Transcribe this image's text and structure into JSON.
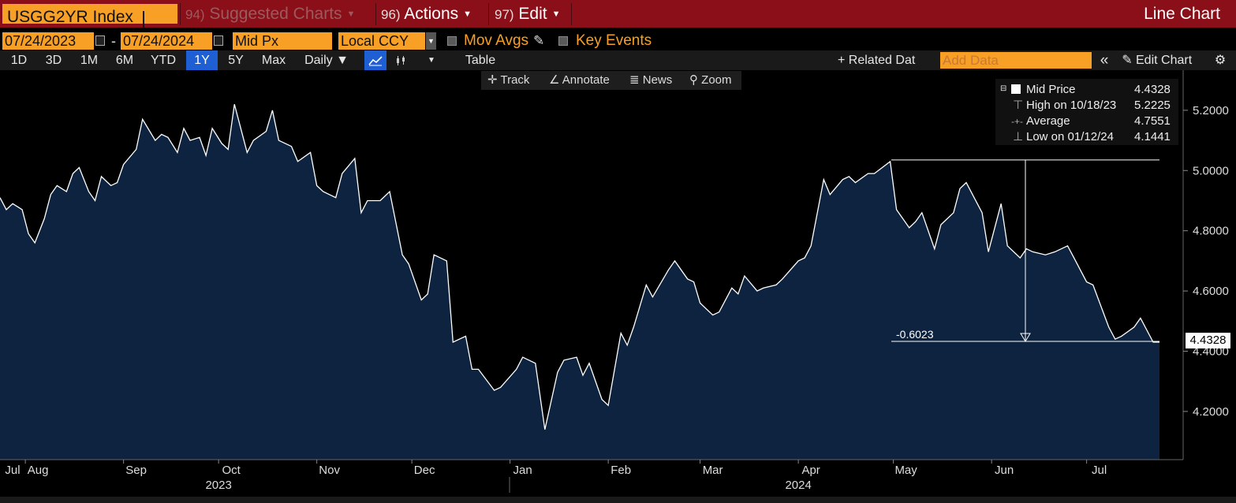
{
  "header": {
    "ticker": "USGG2YR Index",
    "menus": [
      {
        "num": "94)",
        "label": "Suggested Charts",
        "dim": true
      },
      {
        "num": "96)",
        "label": "Actions",
        "dim": false
      },
      {
        "num": "97)",
        "label": "Edit",
        "dim": false
      }
    ],
    "chart_type": "Line Chart"
  },
  "controls": {
    "start_date": "07/24/2023",
    "date_sep": "-",
    "end_date": "07/24/2024",
    "field": "Mid Px",
    "currency": "Local CCY",
    "mov_avgs": "Mov Avgs",
    "key_events": "Key Events",
    "periods": [
      "1D",
      "3D",
      "1M",
      "6M",
      "YTD",
      "1Y",
      "5Y",
      "Max"
    ],
    "active_period": "1Y",
    "frequency": "Daily ▼",
    "table": "Table",
    "related_data": "+ Related Dat",
    "add_data_placeholder": "Add Data",
    "collapse": "«",
    "edit_chart": "Edit Chart",
    "toolbar": [
      "Track",
      "Annotate",
      "News",
      "Zoom"
    ]
  },
  "legend": {
    "rows": [
      {
        "label": "Mid Price",
        "value": "4.4328"
      },
      {
        "label": "High on 10/18/23",
        "value": "5.2225"
      },
      {
        "label": "Average",
        "value": "4.7551"
      },
      {
        "label": "Low on 01/12/24",
        "value": "4.1441"
      }
    ]
  },
  "last_value": "4.4328",
  "annotation": {
    "label": "-0.6023",
    "from": 5.0351,
    "to": 4.4328
  },
  "colors": {
    "fill": "#0d2340",
    "line": "#ffffff",
    "accent": "#f7a025",
    "bar": "#8b0f19"
  },
  "chart_data": {
    "type": "area",
    "ylim": [
      4.04,
      5.28
    ],
    "yticks": [
      "5.2000",
      "5.0000",
      "4.8000",
      "4.6000",
      "4.4000",
      "4.2000"
    ],
    "ytick_values": [
      5.2,
      5.0,
      4.8,
      4.6,
      4.4,
      4.2
    ],
    "xticks": [
      "Jul",
      "Aug",
      "Sep",
      "Oct",
      "Nov",
      "Dec",
      "Jan",
      "Feb",
      "Mar",
      "Apr",
      "May",
      "Jun",
      "Jul"
    ],
    "xtick_dates": [
      "2023-07-01",
      "2023-08-01",
      "2023-09-01",
      "2023-10-01",
      "2023-11-01",
      "2023-12-01",
      "2024-01-01",
      "2024-02-01",
      "2024-03-01",
      "2024-04-01",
      "2024-05-01",
      "2024-06-01",
      "2024-07-01"
    ],
    "years": [
      {
        "label": "2023",
        "date": "2023-10-01"
      },
      {
        "label": "2024",
        "date": "2024-04-01"
      }
    ],
    "x": [
      "2023-07-24",
      "2023-07-26",
      "2023-07-28",
      "2023-07-31",
      "2023-08-02",
      "2023-08-04",
      "2023-08-07",
      "2023-08-09",
      "2023-08-11",
      "2023-08-14",
      "2023-08-16",
      "2023-08-18",
      "2023-08-21",
      "2023-08-23",
      "2023-08-25",
      "2023-08-28",
      "2023-08-30",
      "2023-09-01",
      "2023-09-05",
      "2023-09-07",
      "2023-09-11",
      "2023-09-13",
      "2023-09-15",
      "2023-09-18",
      "2023-09-20",
      "2023-09-22",
      "2023-09-25",
      "2023-09-27",
      "2023-09-29",
      "2023-10-02",
      "2023-10-04",
      "2023-10-06",
      "2023-10-10",
      "2023-10-12",
      "2023-10-16",
      "2023-10-18",
      "2023-10-20",
      "2023-10-24",
      "2023-10-26",
      "2023-10-30",
      "2023-11-01",
      "2023-11-03",
      "2023-11-07",
      "2023-11-09",
      "2023-11-13",
      "2023-11-15",
      "2023-11-17",
      "2023-11-21",
      "2023-11-24",
      "2023-11-28",
      "2023-11-30",
      "2023-12-04",
      "2023-12-06",
      "2023-12-08",
      "2023-12-12",
      "2023-12-14",
      "2023-12-18",
      "2023-12-20",
      "2023-12-22",
      "2023-12-27",
      "2023-12-29",
      "2024-01-03",
      "2024-01-05",
      "2024-01-09",
      "2024-01-12",
      "2024-01-16",
      "2024-01-18",
      "2024-01-22",
      "2024-01-24",
      "2024-01-26",
      "2024-01-30",
      "2024-02-01",
      "2024-02-05",
      "2024-02-07",
      "2024-02-09",
      "2024-02-13",
      "2024-02-15",
      "2024-02-20",
      "2024-02-22",
      "2024-02-26",
      "2024-02-28",
      "2024-03-01",
      "2024-03-05",
      "2024-03-07",
      "2024-03-11",
      "2024-03-13",
      "2024-03-15",
      "2024-03-19",
      "2024-03-21",
      "2024-03-25",
      "2024-03-27",
      "2024-04-01",
      "2024-04-03",
      "2024-04-05",
      "2024-04-09",
      "2024-04-11",
      "2024-04-15",
      "2024-04-17",
      "2024-04-19",
      "2024-04-23",
      "2024-04-25",
      "2024-04-30",
      "2024-05-02",
      "2024-05-06",
      "2024-05-08",
      "2024-05-10",
      "2024-05-14",
      "2024-05-16",
      "2024-05-20",
      "2024-05-22",
      "2024-05-24",
      "2024-05-29",
      "2024-05-31",
      "2024-06-04",
      "2024-06-06",
      "2024-06-10",
      "2024-06-12",
      "2024-06-14",
      "2024-06-18",
      "2024-06-21",
      "2024-06-25",
      "2024-06-27",
      "2024-07-01",
      "2024-07-03",
      "2024-07-08",
      "2024-07-10",
      "2024-07-12",
      "2024-07-16",
      "2024-07-18",
      "2024-07-22",
      "2024-07-24"
    ],
    "series": [
      {
        "values": [
          4.91,
          4.87,
          4.89,
          4.87,
          4.79,
          4.76,
          4.84,
          4.92,
          4.95,
          4.93,
          4.99,
          5.01,
          4.93,
          4.9,
          4.98,
          4.95,
          4.96,
          5.02,
          5.07,
          5.17,
          5.1,
          5.12,
          5.11,
          5.06,
          5.14,
          5.1,
          5.11,
          5.05,
          5.14,
          5.09,
          5.07,
          5.22,
          5.06,
          5.1,
          5.13,
          5.2,
          5.1,
          5.08,
          5.03,
          5.06,
          4.95,
          4.93,
          4.91,
          4.99,
          5.04,
          4.86,
          4.9,
          4.9,
          4.93,
          4.72,
          4.69,
          4.57,
          4.59,
          4.72,
          4.7,
          4.43,
          4.45,
          4.34,
          4.34,
          4.27,
          4.28,
          4.34,
          4.38,
          4.36,
          4.14,
          4.33,
          4.37,
          4.38,
          4.32,
          4.36,
          4.24,
          4.22,
          4.46,
          4.42,
          4.48,
          4.62,
          4.58,
          4.67,
          4.7,
          4.64,
          4.63,
          4.56,
          4.52,
          4.53,
          4.61,
          4.59,
          4.65,
          4.6,
          4.61,
          4.62,
          4.64,
          4.7,
          4.71,
          4.75,
          4.97,
          4.92,
          4.97,
          4.98,
          4.96,
          4.99,
          4.99,
          5.03,
          4.87,
          4.81,
          4.83,
          4.86,
          4.74,
          4.82,
          4.86,
          4.94,
          4.96,
          4.86,
          4.73,
          4.89,
          4.75,
          4.71,
          4.74,
          4.73,
          4.72,
          4.73,
          4.75,
          4.71,
          4.63,
          4.62,
          4.48,
          4.44,
          4.45,
          4.48,
          4.51,
          4.43,
          4.43
        ]
      }
    ]
  }
}
